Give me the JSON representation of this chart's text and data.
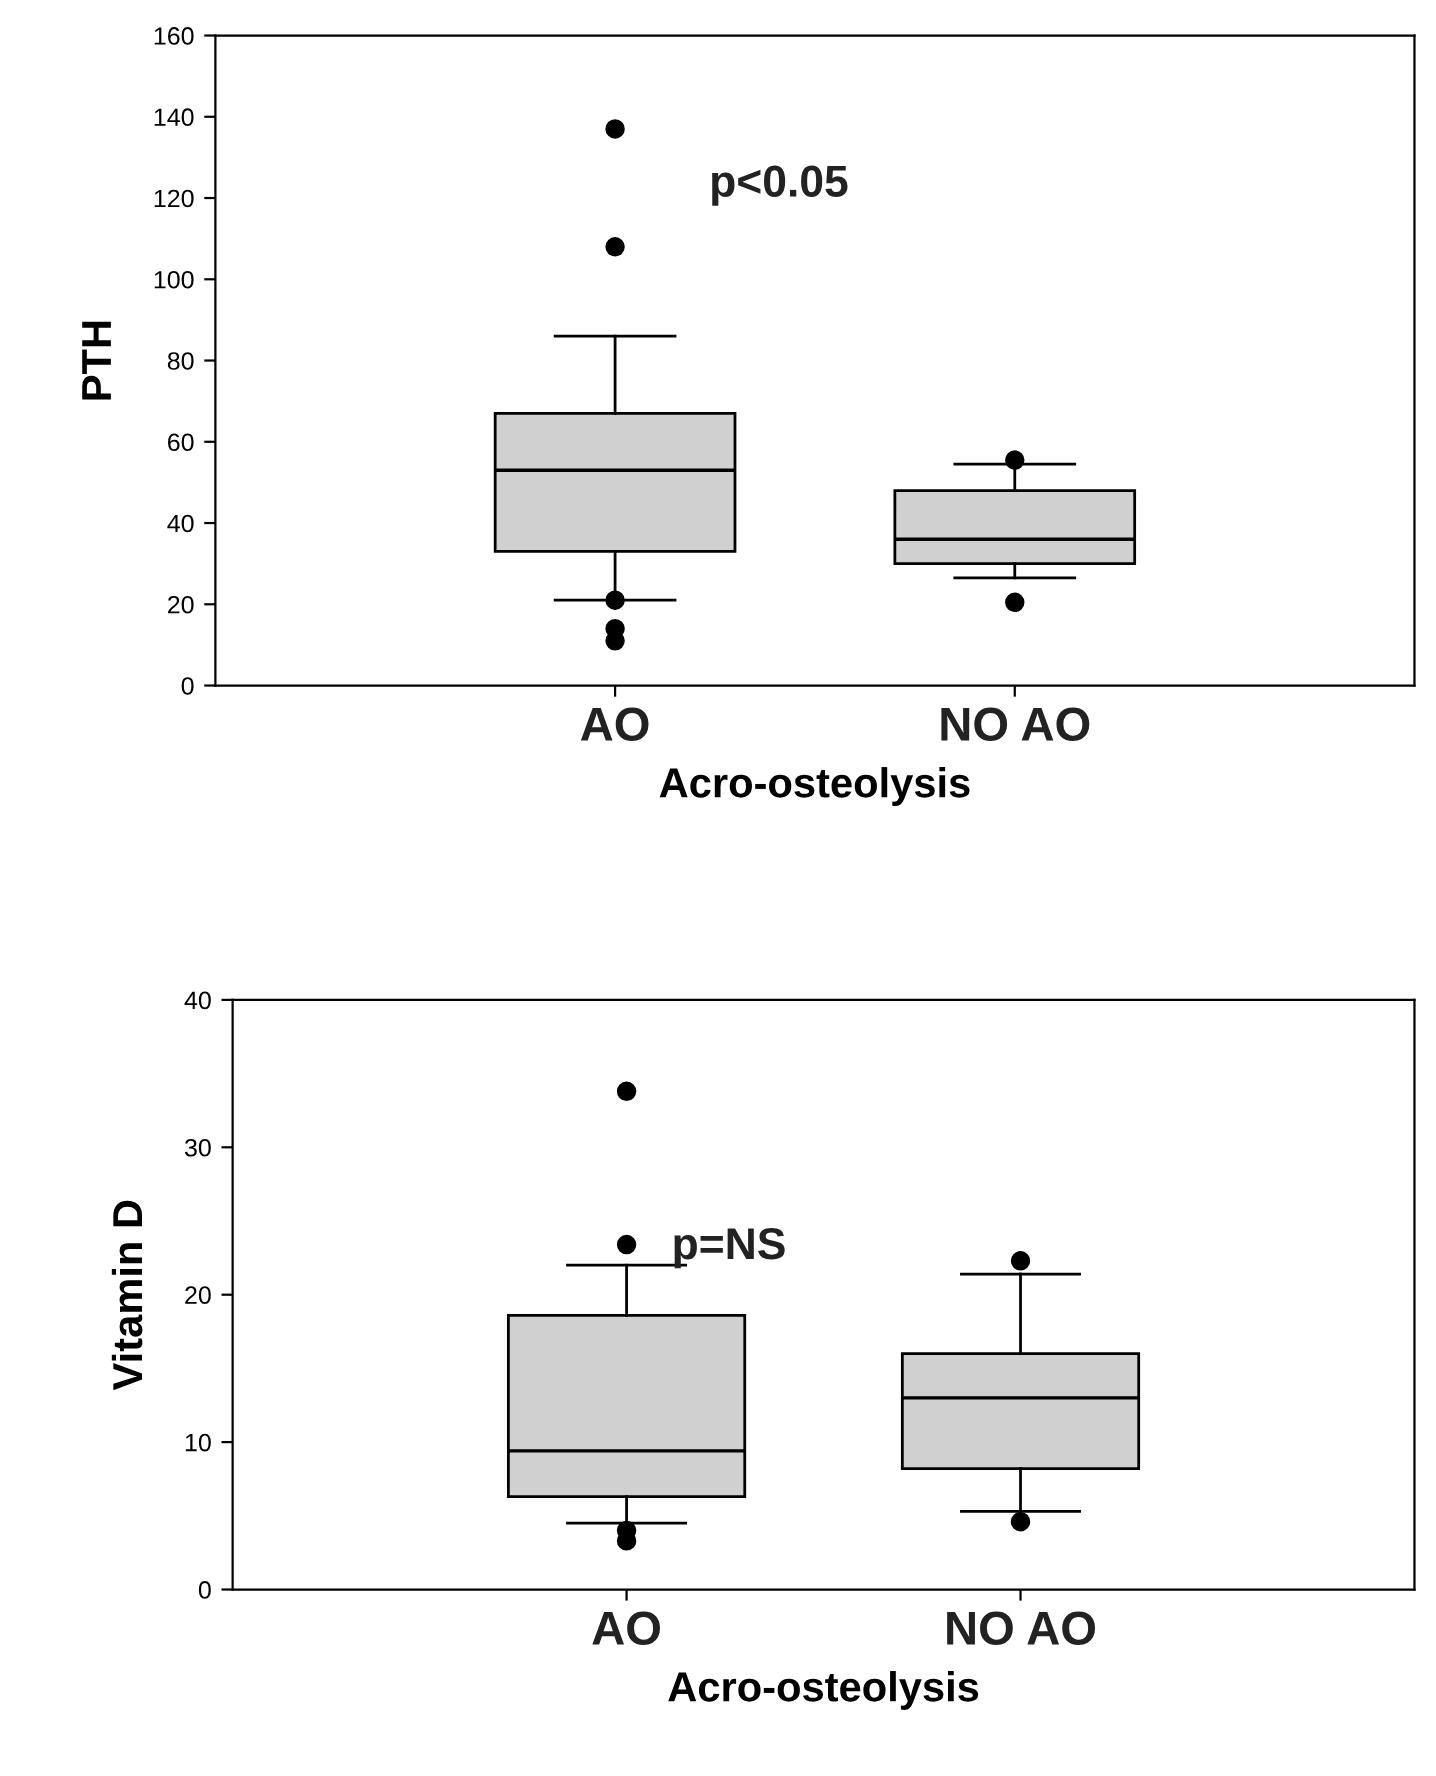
{
  "chart_data": [
    {
      "type": "box",
      "xlabel": "Acro-osteolysis",
      "ylabel": "PTH",
      "categories": [
        "AO",
        "NO AO"
      ],
      "ylim": [
        0,
        160
      ],
      "yticks": [
        0,
        20,
        40,
        60,
        80,
        100,
        120,
        140,
        160
      ],
      "color": "#d0d0d0",
      "grid": false,
      "legend": false,
      "boxes": [
        {
          "low": 21,
          "q1": 33,
          "median": 53,
          "q3": 67,
          "high": 86,
          "outliers": [
            137,
            108,
            21,
            14,
            11
          ]
        },
        {
          "low": 26.5,
          "q1": 30,
          "median": 36,
          "q3": 48,
          "high": 54.5,
          "outliers": [
            55.5,
            20.5
          ]
        }
      ],
      "annotations": [
        "p<0.05"
      ]
    },
    {
      "type": "box",
      "xlabel": "Acro-osteolysis",
      "ylabel": "Vitamin D",
      "categories": [
        "AO",
        "NO AO"
      ],
      "ylim": [
        0,
        40
      ],
      "yticks": [
        0,
        10,
        20,
        30,
        40
      ],
      "color": "#d0d0d0",
      "grid": false,
      "legend": false,
      "boxes": [
        {
          "low": 4.5,
          "q1": 6.3,
          "median": 9.4,
          "q3": 18.6,
          "high": 22,
          "outliers": [
            33.8,
            23.4,
            4,
            3.3
          ]
        },
        {
          "low": 5.3,
          "q1": 8.2,
          "median": 13,
          "q3": 16,
          "high": 21.4,
          "outliers": [
            22.3,
            4.6
          ]
        }
      ],
      "annotations": [
        "p=NS"
      ]
    }
  ]
}
